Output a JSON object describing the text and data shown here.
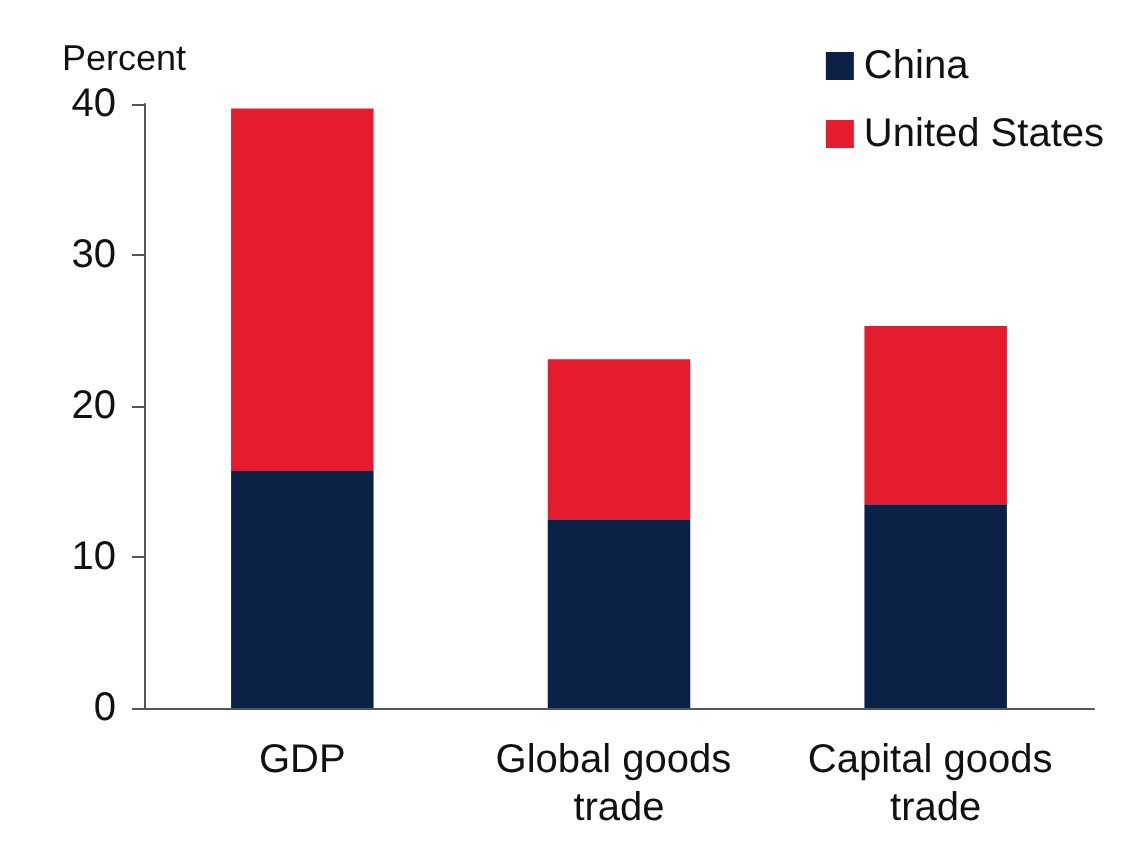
{
  "chart_data": {
    "type": "bar",
    "stacked": true,
    "ylabel": "Percent",
    "categories": [
      "GDP",
      "Global goods trade",
      "Capital goods trade"
    ],
    "series": [
      {
        "name": "China",
        "color": "#0b2145",
        "values": [
          15.7,
          12.5,
          13.5
        ]
      },
      {
        "name": "United States",
        "color": "#e51c2e",
        "values": [
          24.0,
          10.6,
          11.8
        ]
      }
    ],
    "ylim": [
      0,
      40
    ],
    "yticks": [
      0,
      10,
      20,
      30,
      40
    ],
    "grid": false,
    "legend": "top right"
  }
}
